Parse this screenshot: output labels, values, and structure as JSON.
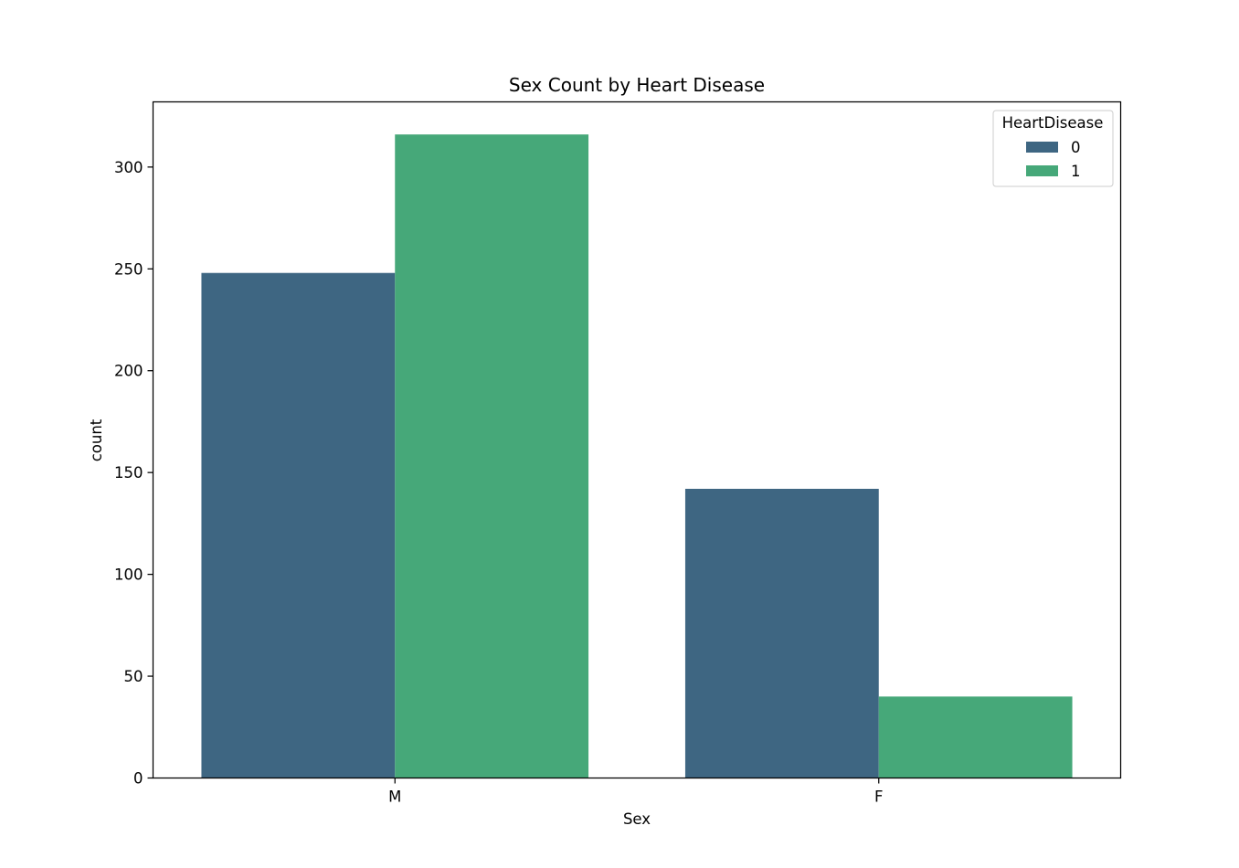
{
  "chart_data": {
    "type": "bar",
    "title": "Sex Count by Heart Disease",
    "xlabel": "Sex",
    "ylabel": "count",
    "categories": [
      "M",
      "F"
    ],
    "series": [
      {
        "name": "0",
        "values": [
          248,
          142
        ],
        "color": "#3e6682"
      },
      {
        "name": "1",
        "values": [
          316,
          40
        ],
        "color": "#46a879"
      }
    ],
    "ylim": [
      0,
      332
    ],
    "yticks": [
      0,
      50,
      100,
      150,
      200,
      250,
      300
    ],
    "legend": {
      "title": "HeartDisease",
      "placement": "top-right"
    },
    "grid": false
  }
}
